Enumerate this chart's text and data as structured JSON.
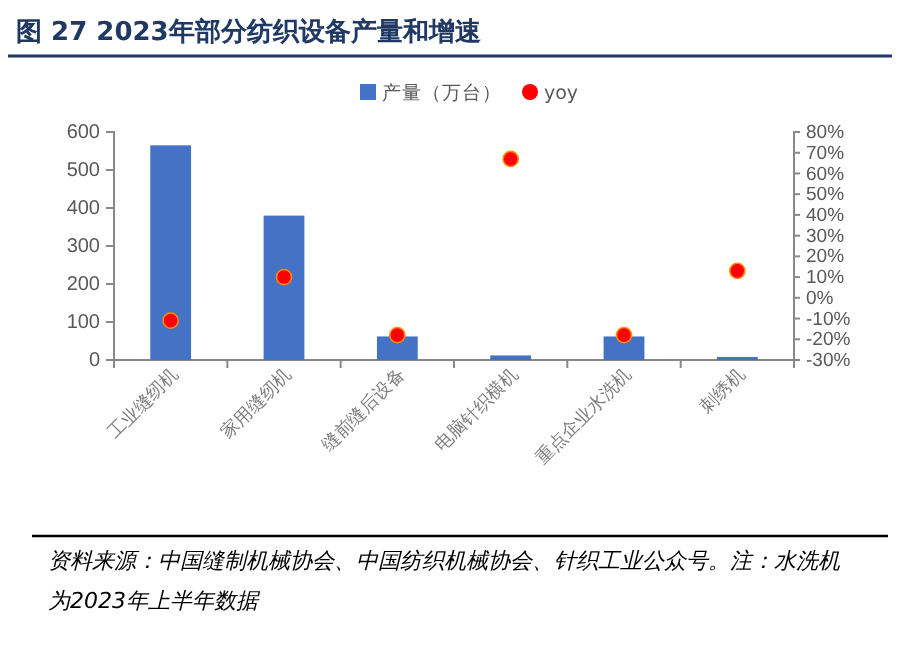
{
  "chart_data": {
    "type": "bar",
    "title": "图 27 2023年部分纺织设备产量和增速",
    "categories": [
      "工业缝纫机",
      "家用缝纫机",
      "缝前缝后设备",
      "电脑针织横机",
      "重点企业水洗机",
      "刺绣机"
    ],
    "series": [
      {
        "name": "产量（万台）",
        "color": "#4472c4",
        "values": [
          565,
          380,
          62,
          12,
          62,
          8
        ]
      },
      {
        "name": "yoy",
        "type": "scatter",
        "axis": "y2",
        "color": "#ff0000",
        "values": [
          -11,
          10,
          -18,
          67,
          -18,
          13
        ]
      }
    ],
    "ylim": [
      0,
      600
    ],
    "yticks": [
      0,
      100,
      200,
      300,
      400,
      500,
      600
    ],
    "y2lim": [
      -30,
      80
    ],
    "y2ticks": [
      {
        "value": -30,
        "label": "-30%"
      },
      {
        "value": -20,
        "label": "-20%"
      },
      {
        "value": -10,
        "label": "-10%"
      },
      {
        "value": 0,
        "label": "0%"
      },
      {
        "value": 10,
        "label": "10%"
      },
      {
        "value": 20,
        "label": "20%"
      },
      {
        "value": 30,
        "label": "30%"
      },
      {
        "value": 40,
        "label": "40%"
      },
      {
        "value": 50,
        "label": "50%"
      },
      {
        "value": 60,
        "label": "60%"
      },
      {
        "value": 70,
        "label": "70%"
      },
      {
        "value": 80,
        "label": "80%"
      }
    ],
    "legend": "top right",
    "marker": "circle",
    "annotations": [
      "资料来源：中国缝制机械协会、中国纺织机械协会、针织工业公众号。注：水洗机为2023年上半年数据"
    ]
  }
}
